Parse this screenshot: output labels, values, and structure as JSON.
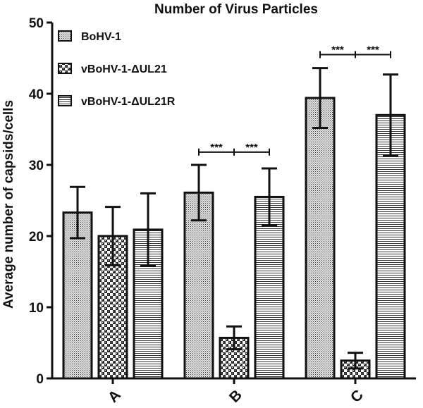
{
  "chart_data": {
    "type": "bar",
    "title": "Number of Virus Particles",
    "ylabel": "Average number of capsids/cells",
    "xlabel": "",
    "ylim": [
      0,
      50
    ],
    "yticks": [
      "0",
      "10",
      "20",
      "30",
      "40",
      "50"
    ],
    "categories": [
      "A",
      "B",
      "C"
    ],
    "series": [
      {
        "name": "BoHV-1",
        "values": [
          23.3,
          26.1,
          39.4
        ],
        "errors": [
          3.6,
          3.9,
          4.2
        ],
        "pattern": "crosshatch"
      },
      {
        "name": "vBoHV-1-ΔUL21",
        "values": [
          20.0,
          5.7,
          2.5
        ],
        "errors": [
          4.1,
          1.6,
          1.1
        ],
        "pattern": "checker"
      },
      {
        "name": "vBoHV-1-ΔUL21R",
        "values": [
          20.9,
          25.5,
          37.0
        ],
        "errors": [
          5.1,
          4.0,
          5.7
        ],
        "pattern": "horizontal-lines"
      }
    ],
    "significance": [
      {
        "category": "B",
        "from_series": 0,
        "to_series": 1,
        "label": "***",
        "y": 31.8
      },
      {
        "category": "B",
        "from_series": 1,
        "to_series": 2,
        "label": "***",
        "y": 31.8
      },
      {
        "category": "C",
        "from_series": 0,
        "to_series": 1,
        "label": "***",
        "y": 45.5
      },
      {
        "category": "C",
        "from_series": 1,
        "to_series": 2,
        "label": "***",
        "y": 45.5
      }
    ],
    "legend_position": "top-left",
    "grid": false
  }
}
